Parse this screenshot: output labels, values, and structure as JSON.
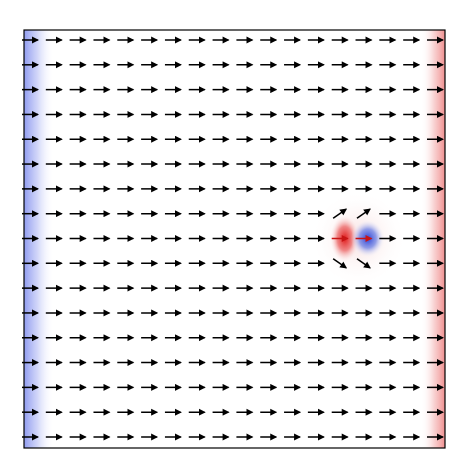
{
  "figure": {
    "type": "vector-field-over-scalar-heatmap",
    "grid_rows": 17,
    "grid_cols": 18,
    "default_vector_direction": "right",
    "background_color": "#ffffff",
    "frame_color": "#000000",
    "arrow_color": "#000000",
    "heatmap_colormap": "blue-white-red",
    "negative_color": "#2b44d6",
    "positive_color": "#e01a1a",
    "left_edge_value": -0.45,
    "right_edge_value": 0.35,
    "features": {
      "dipole": {
        "row": 8,
        "col": 13.8,
        "positive_lobe": "left",
        "negative_lobe": "right",
        "strength": 1
      },
      "deflected_arrows": [
        {
          "row": 7,
          "col": 13,
          "angle_deg": -35
        },
        {
          "row": 7,
          "col": 14,
          "angle_deg": -35
        },
        {
          "row": 9,
          "col": 13,
          "angle_deg": 35
        },
        {
          "row": 9,
          "col": 14,
          "angle_deg": 35
        }
      ],
      "highlighted_arrows": [
        {
          "row": 8,
          "col": 13,
          "color": "#c81414"
        },
        {
          "row": 8,
          "col": 14,
          "color": "#c81414"
        }
      ]
    }
  }
}
